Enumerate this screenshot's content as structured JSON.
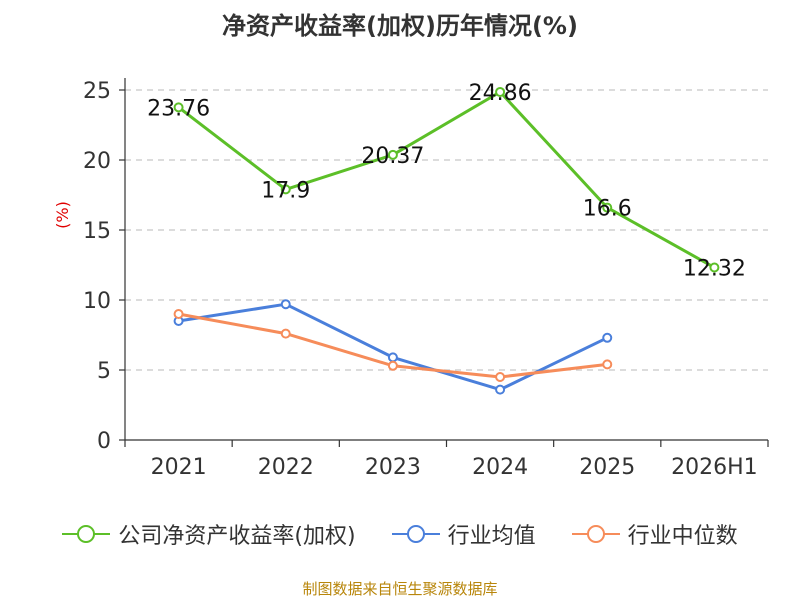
{
  "title": "净资产收益率(加权)历年情况(%)",
  "source": "制图数据来自恒生聚源数据库",
  "chart_data": {
    "type": "line",
    "title": "净资产收益率(加权)历年情况(%)",
    "ylabel": "(%)",
    "xlabel": "",
    "ylim": [
      0,
      25
    ],
    "yticks": [
      0,
      5,
      10,
      15,
      20,
      25
    ],
    "grid": true,
    "legend_position": "bottom",
    "categories": [
      "2021",
      "2022",
      "2023",
      "2024",
      "2025",
      "2026H1"
    ],
    "series": [
      {
        "name": "公司净资产收益率(加权)",
        "color": "#5cbf28",
        "values": [
          23.76,
          17.9,
          20.37,
          24.86,
          16.6,
          12.32
        ],
        "labels": [
          "23.76",
          "17.9",
          "20.37",
          "24.86",
          "16.6",
          "12.32"
        ]
      },
      {
        "name": "行业均值",
        "color": "#4a7fdb",
        "values": [
          8.5,
          9.7,
          5.9,
          3.6,
          7.3,
          null
        ]
      },
      {
        "name": "行业中位数",
        "color": "#f68c5a",
        "values": [
          9.0,
          7.6,
          5.3,
          4.5,
          5.4,
          null
        ]
      }
    ]
  }
}
